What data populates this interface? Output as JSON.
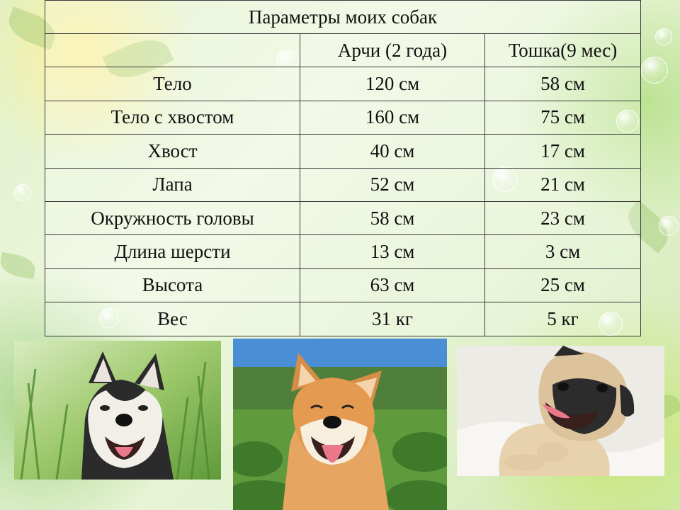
{
  "table": {
    "title": "Параметры моих собак",
    "header": [
      "",
      "Арчи (2 года)",
      "Тошка(9 мес)"
    ],
    "rows": [
      [
        "Тело",
        "120 см",
        "58 см"
      ],
      [
        "Тело с хвостом",
        "160 см",
        "75 см"
      ],
      [
        "Хвост",
        "40 см",
        "17 см"
      ],
      [
        "Лапа",
        "52 см",
        "21 см"
      ],
      [
        "Окружность головы",
        "58 см",
        "23 см"
      ],
      [
        "Длина шерсти",
        "13 см",
        "3 см"
      ],
      [
        "Высота",
        "63 см",
        "25 см"
      ],
      [
        "Вес",
        "31 кг",
        "5 кг"
      ]
    ]
  },
  "photos": [
    {
      "subject": "husky-dog"
    },
    {
      "subject": "shiba-inu-dog"
    },
    {
      "subject": "pug-dog"
    }
  ],
  "colors": {
    "background": "#e3f2cf",
    "border": "#3a3a3a",
    "text": "#111111"
  }
}
